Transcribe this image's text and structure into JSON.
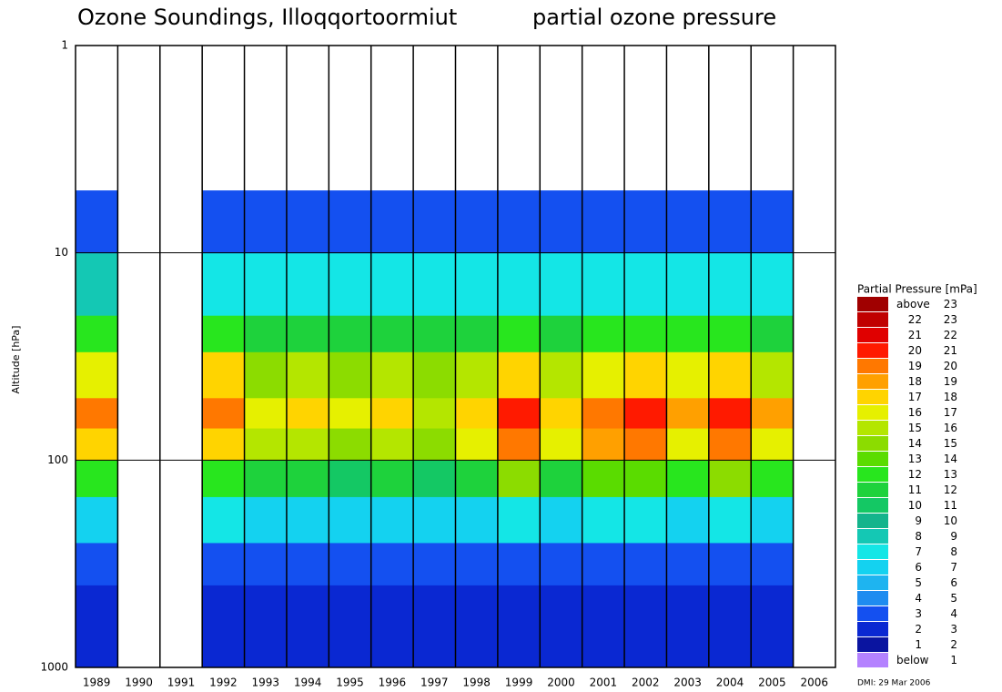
{
  "chart_data": {
    "type": "heatmap",
    "title": "Ozone Soundings, Illoqqortoormiut",
    "subtitle": "partial ozone pressure",
    "y_label": "Altitude [hPa]",
    "note": "DMI: 29 Mar 2006",
    "categories": [
      "1989",
      "1990",
      "1991",
      "1992",
      "1993",
      "1994",
      "1995",
      "1996",
      "1997",
      "1998",
      "1999",
      "2000",
      "2001",
      "2002",
      "2003",
      "2004",
      "2005",
      "2006"
    ],
    "y_edges": [
      1000,
      400,
      250,
      150,
      100,
      70,
      50,
      30,
      20,
      10,
      5
    ],
    "values": [
      [
        2,
        3,
        6,
        12,
        17,
        19,
        16,
        12,
        8,
        3
      ],
      null,
      null,
      [
        2,
        3,
        7,
        12,
        17,
        19,
        17,
        12,
        7,
        3
      ],
      [
        2,
        3,
        6,
        11,
        15,
        16,
        14,
        11,
        7,
        3
      ],
      [
        2,
        3,
        6,
        11,
        15,
        17,
        15,
        11,
        7,
        3
      ],
      [
        2,
        3,
        6,
        10,
        14,
        16,
        14,
        11,
        7,
        3
      ],
      [
        2,
        3,
        6,
        11,
        15,
        17,
        15,
        11,
        7,
        3
      ],
      [
        2,
        3,
        6,
        10,
        14,
        15,
        14,
        11,
        7,
        3
      ],
      [
        2,
        3,
        6,
        11,
        16,
        17,
        15,
        11,
        7,
        3
      ],
      [
        2,
        3,
        7,
        14,
        19,
        20,
        17,
        12,
        7,
        3
      ],
      [
        2,
        3,
        6,
        11,
        16,
        17,
        15,
        11,
        7,
        3
      ],
      [
        2,
        3,
        7,
        13,
        18,
        19,
        16,
        12,
        7,
        3
      ],
      [
        2,
        3,
        7,
        13,
        19,
        20,
        17,
        12,
        7,
        3
      ],
      [
        2,
        3,
        6,
        12,
        16,
        18,
        16,
        12,
        7,
        3
      ],
      [
        2,
        3,
        7,
        14,
        19,
        20,
        17,
        12,
        7,
        3
      ],
      [
        2,
        3,
        6,
        12,
        16,
        18,
        15,
        11,
        7,
        3
      ],
      null
    ],
    "ylim": [
      1000,
      1
    ],
    "yticks": [
      1,
      10,
      100,
      1000
    ],
    "log_y": true,
    "grid": true,
    "legend": {
      "title": "Partial Pressure [mPa]",
      "entries": [
        {
          "low": "above",
          "high": 23,
          "color": "#a00000"
        },
        {
          "low": 22,
          "high": 23,
          "color": "#c00000"
        },
        {
          "low": 21,
          "high": 22,
          "color": "#e00000"
        },
        {
          "low": 20,
          "high": 21,
          "color": "#ff1a00"
        },
        {
          "low": 19,
          "high": 20,
          "color": "#ff7800"
        },
        {
          "low": 18,
          "high": 19,
          "color": "#ffa000"
        },
        {
          "low": 17,
          "high": 18,
          "color": "#ffd400"
        },
        {
          "low": 16,
          "high": 17,
          "color": "#e6f000"
        },
        {
          "low": 15,
          "high": 16,
          "color": "#b4e600"
        },
        {
          "low": 14,
          "high": 15,
          "color": "#8cdc00"
        },
        {
          "low": 13,
          "high": 14,
          "color": "#5adc00"
        },
        {
          "low": 12,
          "high": 13,
          "color": "#28e61e"
        },
        {
          "low": 11,
          "high": 12,
          "color": "#1ed23c"
        },
        {
          "low": 10,
          "high": 11,
          "color": "#14c864"
        },
        {
          "low": 9,
          "high": 10,
          "color": "#14b48c"
        },
        {
          "low": 8,
          "high": 9,
          "color": "#14c8b4"
        },
        {
          "low": 7,
          "high": 8,
          "color": "#14e6e6"
        },
        {
          "low": 6,
          "high": 7,
          "color": "#14d2f0"
        },
        {
          "low": 5,
          "high": 6,
          "color": "#1eb4f0"
        },
        {
          "low": 4,
          "high": 5,
          "color": "#1e8cf0"
        },
        {
          "low": 3,
          "high": 4,
          "color": "#1450f0"
        },
        {
          "low": 2,
          "high": 3,
          "color": "#0a28d2"
        },
        {
          "low": 1,
          "high": 2,
          "color": "#0a14a0"
        },
        {
          "low": "below",
          "high": 1,
          "color": "#b482ff"
        }
      ]
    }
  }
}
